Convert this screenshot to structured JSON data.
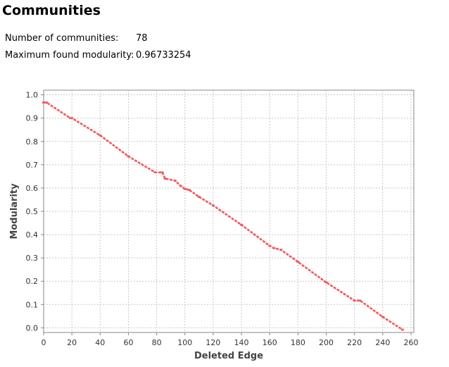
{
  "header": {
    "title": "Communities"
  },
  "stats": [
    {
      "label": "Number of communities:",
      "value": "78"
    },
    {
      "label": "Maximum found modularity:",
      "value": "0.96733254"
    }
  ],
  "colors": {
    "series": "#f05a5a",
    "grid": "#c8c8c8",
    "frame": "#888888"
  },
  "chart_data": {
    "type": "line",
    "xlabel": "Deleted Edge",
    "ylabel": "Modularity",
    "xlim": [
      0,
      262
    ],
    "ylim": [
      -0.02,
      1.02
    ],
    "xticks": [
      0,
      20,
      40,
      60,
      80,
      100,
      120,
      140,
      160,
      180,
      200,
      220,
      240,
      260
    ],
    "yticks": [
      0.0,
      0.1,
      0.2,
      0.3,
      0.4,
      0.5,
      0.6,
      0.7,
      0.8,
      0.9,
      1.0
    ],
    "grid": true,
    "series": [
      {
        "points": [
          [
            0,
            0.967
          ],
          [
            2,
            0.967
          ],
          [
            19,
            0.9
          ],
          [
            20,
            0.9
          ],
          [
            40,
            0.826
          ],
          [
            60,
            0.736
          ],
          [
            79,
            0.667
          ],
          [
            84,
            0.667
          ],
          [
            86,
            0.64
          ],
          [
            93,
            0.632
          ],
          [
            97,
            0.609
          ],
          [
            100,
            0.596
          ],
          [
            103,
            0.592
          ],
          [
            110,
            0.562
          ],
          [
            120,
            0.525
          ],
          [
            140,
            0.442
          ],
          [
            160,
            0.352
          ],
          [
            163,
            0.342
          ],
          [
            168,
            0.335
          ],
          [
            180,
            0.283
          ],
          [
            200,
            0.195
          ],
          [
            220,
            0.117
          ],
          [
            224,
            0.117
          ],
          [
            240,
            0.047
          ],
          [
            254,
            -0.008
          ]
        ]
      }
    ]
  }
}
